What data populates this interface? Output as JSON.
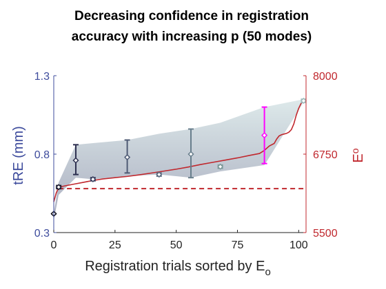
{
  "chart_data": {
    "type": "line",
    "title_lines": [
      "Decreasing confidence in registration",
      "accuracy with increasing p (50 modes)"
    ],
    "xlabel": "Registration trials sorted by E",
    "xlabel_sub": "o",
    "ylabel_left": "tRE (mm)",
    "ylabel_right": "E",
    "ylabel_right_sub": "o",
    "xlim": [
      0,
      103
    ],
    "ylim_left": [
      0.3,
      1.3
    ],
    "ylim_right": [
      5500,
      8000
    ],
    "xticks": [
      0,
      25,
      50,
      75,
      100
    ],
    "xtick_labels": [
      "0",
      "25",
      "50",
      "75",
      "100"
    ],
    "yticks_left": [
      0.3,
      0.8,
      1.3
    ],
    "ytick_labels_left": [
      "0.3",
      "0.8",
      "1.3"
    ],
    "yticks_right": [
      5500,
      6750,
      8000
    ],
    "ytick_labels_right": [
      "5500",
      "6750",
      "8000"
    ],
    "grid": false,
    "colors": {
      "left_axis": "#3d4b9c",
      "right_axis": "#c0272d",
      "band_top": "#dde9ea",
      "band_bottom": "#a9adbf",
      "last_marker": "#ff00ff"
    },
    "band": {
      "x": [
        0,
        2,
        9,
        16,
        30,
        43,
        56,
        68,
        86,
        102
      ],
      "upper": [
        0.42,
        0.62,
        0.86,
        0.87,
        0.89,
        0.93,
        0.96,
        1.0,
        1.1,
        1.15
      ],
      "lower": [
        0.38,
        0.54,
        0.65,
        0.64,
        0.66,
        0.67,
        0.65,
        0.69,
        0.73,
        1.13
      ]
    },
    "error_bars": [
      {
        "x": 0,
        "y": 0.42,
        "low": 0.42,
        "high": 0.42,
        "color": "#10101c"
      },
      {
        "x": 2,
        "y": 0.59,
        "low": 0.58,
        "high": 0.6,
        "color": "#1c1d32"
      },
      {
        "x": 9,
        "y": 0.76,
        "low": 0.67,
        "high": 0.86,
        "color": "#2d3050"
      },
      {
        "x": 16,
        "y": 0.64,
        "low": 0.63,
        "high": 0.65,
        "color": "#3a4060"
      },
      {
        "x": 30,
        "y": 0.78,
        "low": 0.68,
        "high": 0.89,
        "color": "#4e5a74"
      },
      {
        "x": 43,
        "y": 0.67,
        "low": 0.66,
        "high": 0.68,
        "color": "#5a6b80"
      },
      {
        "x": 56,
        "y": 0.8,
        "low": 0.65,
        "high": 0.96,
        "color": "#687e8c"
      },
      {
        "x": 68,
        "y": 0.72,
        "low": 0.71,
        "high": 0.73,
        "color": "#7b9898"
      },
      {
        "x": 86,
        "y": 0.92,
        "low": 0.74,
        "high": 1.1,
        "color": "#ff00ff"
      },
      {
        "x": 102,
        "y": 1.14,
        "low": 1.13,
        "high": 1.15,
        "color": "#9fbcbc"
      }
    ],
    "series": [
      {
        "axis": "right",
        "style": "solid",
        "color": "#c0272d",
        "x": [
          0,
          1,
          2,
          4,
          8,
          12,
          16,
          20,
          25,
          30,
          35,
          40,
          45,
          50,
          55,
          60,
          65,
          70,
          75,
          80,
          84,
          86,
          88,
          90,
          91,
          92,
          93,
          94,
          95,
          96,
          97,
          98,
          99,
          100,
          101,
          102
        ],
        "values": [
          5990,
          6130,
          6220,
          6240,
          6270,
          6300,
          6330,
          6355,
          6375,
          6395,
          6420,
          6450,
          6480,
          6510,
          6545,
          6585,
          6620,
          6655,
          6690,
          6730,
          6760,
          6810,
          6880,
          6920,
          6990,
          7040,
          7060,
          7070,
          7080,
          7100,
          7140,
          7230,
          7370,
          7480,
          7560,
          7600
        ]
      },
      {
        "axis": "right",
        "style": "dashed",
        "color": "#c0272d",
        "x": [
          2,
          102
        ],
        "values": [
          6200,
          6200
        ]
      }
    ]
  }
}
